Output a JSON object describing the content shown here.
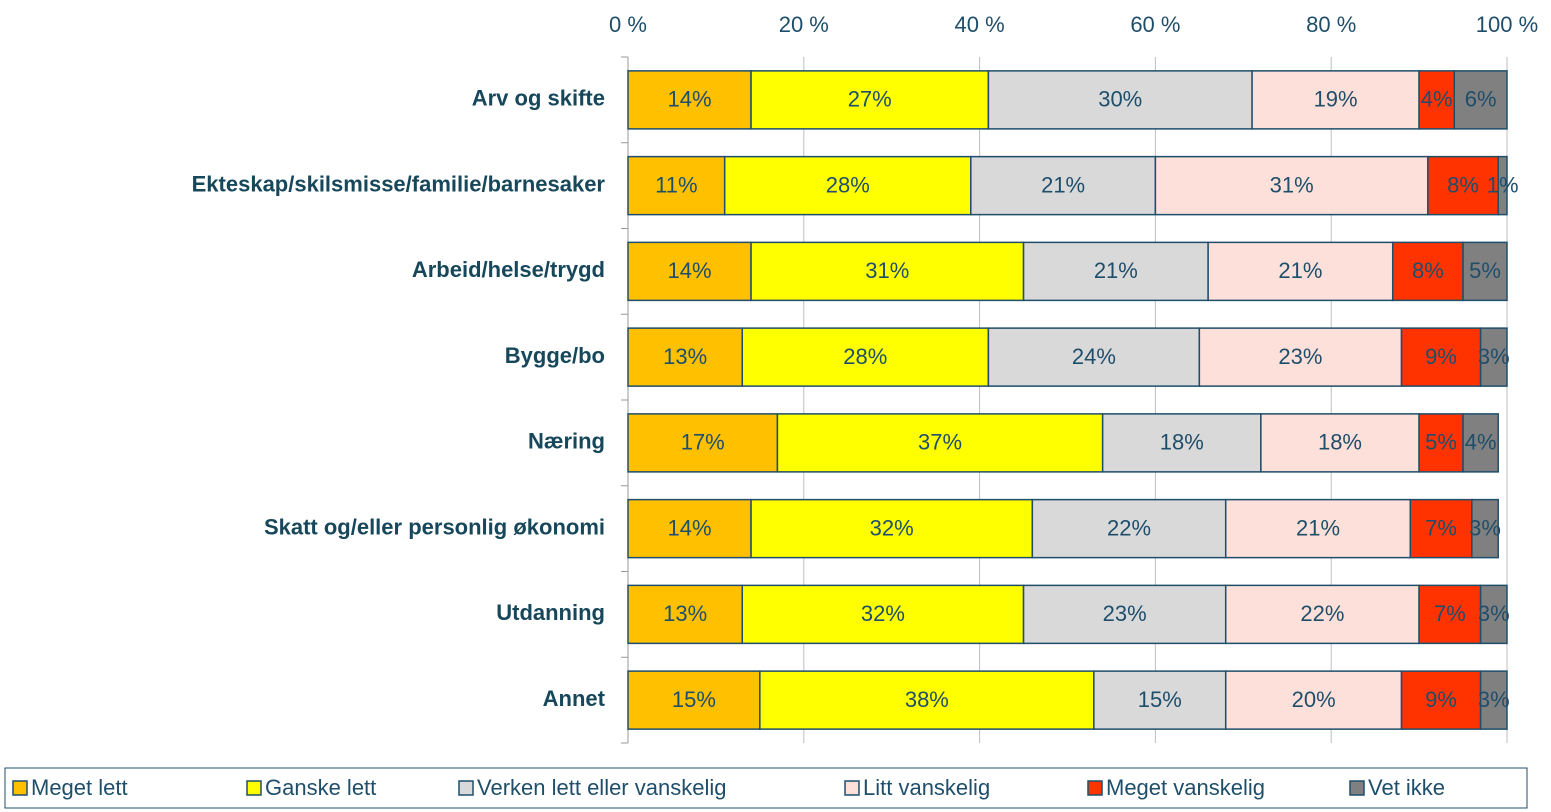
{
  "chart_data": {
    "type": "stacked-bar-horizontal",
    "categories": [
      "Arv og skifte",
      "Ekteskap/skilsmisse/familie/barnesaker",
      "Arbeid/helse/trygd",
      "Bygge/bo",
      "Næring",
      "Skatt og/eller personlig økonomi",
      "Utdanning",
      "Annet"
    ],
    "series": [
      {
        "name": "Meget lett",
        "color": "#FFC000",
        "values": [
          14,
          11,
          14,
          13,
          17,
          14,
          13,
          15
        ],
        "value_labels": [
          "14%",
          "11%",
          "14%",
          "13%",
          "17%",
          "14%",
          "13%",
          "15%"
        ]
      },
      {
        "name": "Ganske lett",
        "color": "#FFFF00",
        "values": [
          27,
          28,
          31,
          28,
          37,
          32,
          32,
          38
        ],
        "value_labels": [
          "27%",
          "28%",
          "31%",
          "28%",
          "37%",
          "32%",
          "32%",
          "38%"
        ]
      },
      {
        "name": "Verken lett eller vanskelig",
        "color": "#D9D9D9",
        "values": [
          30,
          21,
          21,
          24,
          18,
          22,
          23,
          15
        ],
        "value_labels": [
          "30%",
          "21%",
          "21%",
          "24%",
          "18%",
          "22%",
          "23%",
          "15%"
        ]
      },
      {
        "name": "Litt vanskelig",
        "color": "#FDE0D9",
        "values": [
          19,
          31,
          21,
          23,
          18,
          21,
          22,
          20
        ],
        "value_labels": [
          "19%",
          "31%",
          "21%",
          "23%",
          "18%",
          "21%",
          "22%",
          "20%"
        ]
      },
      {
        "name": "Meget vanskelig",
        "color": "#FF3300",
        "values": [
          4,
          8,
          8,
          9,
          5,
          7,
          7,
          9
        ],
        "value_labels": [
          "4%",
          "8%",
          "8%",
          "9%",
          "5%",
          "7%",
          "7%",
          "9%"
        ]
      },
      {
        "name": "Vet ikke",
        "color": "#808080",
        "values": [
          6,
          1,
          5,
          3,
          4,
          3,
          3,
          3
        ],
        "value_labels": [
          "6%",
          "1%",
          "5%",
          "3%",
          "4%",
          "3%",
          "3%",
          "3%"
        ]
      }
    ],
    "xlim": [
      0,
      100
    ],
    "xticks": [
      {
        "value": 0,
        "label": "0 %"
      },
      {
        "value": 20,
        "label": "20 %"
      },
      {
        "value": 40,
        "label": "40 %"
      },
      {
        "value": 60,
        "label": "60 %"
      },
      {
        "value": 80,
        "label": "80 %"
      },
      {
        "value": 100,
        "label": "100 %"
      }
    ],
    "grid": true,
    "legend": "bottom"
  }
}
